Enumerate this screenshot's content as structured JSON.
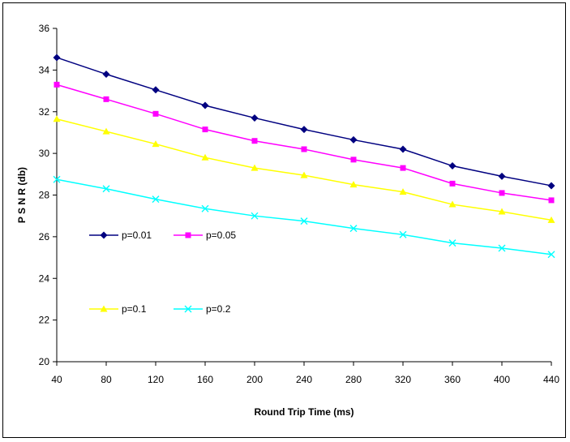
{
  "chart_data": {
    "type": "line",
    "x": [
      40,
      80,
      120,
      160,
      200,
      240,
      280,
      320,
      360,
      400,
      440
    ],
    "xlabel": "Round Trip Time (ms)",
    "ylabel": "P S N R (db)",
    "ylim": [
      20,
      36
    ],
    "yticks": [
      20,
      22,
      24,
      26,
      28,
      30,
      32,
      34,
      36
    ],
    "grid": false,
    "series": [
      {
        "name": "p=0.01",
        "color": "#000080",
        "marker": "diamond",
        "values": [
          34.6,
          33.8,
          33.05,
          32.3,
          31.7,
          31.15,
          30.65,
          30.2,
          29.4,
          28.9,
          28.45
        ]
      },
      {
        "name": "p=0.05",
        "color": "#FF00FF",
        "marker": "square",
        "values": [
          33.3,
          32.6,
          31.9,
          31.15,
          30.6,
          30.2,
          29.7,
          29.3,
          28.55,
          28.1,
          27.75
        ]
      },
      {
        "name": "p=0.1",
        "color": "#FFFF00",
        "marker": "triangle",
        "values": [
          31.65,
          31.05,
          30.45,
          29.8,
          29.3,
          28.95,
          28.5,
          28.15,
          27.55,
          27.2,
          26.8
        ]
      },
      {
        "name": "p=0.2",
        "color": "#00FFFF",
        "marker": "x",
        "values": [
          28.75,
          28.3,
          27.8,
          27.35,
          27.0,
          26.75,
          26.4,
          26.1,
          25.7,
          25.45,
          25.15
        ]
      }
    ]
  }
}
